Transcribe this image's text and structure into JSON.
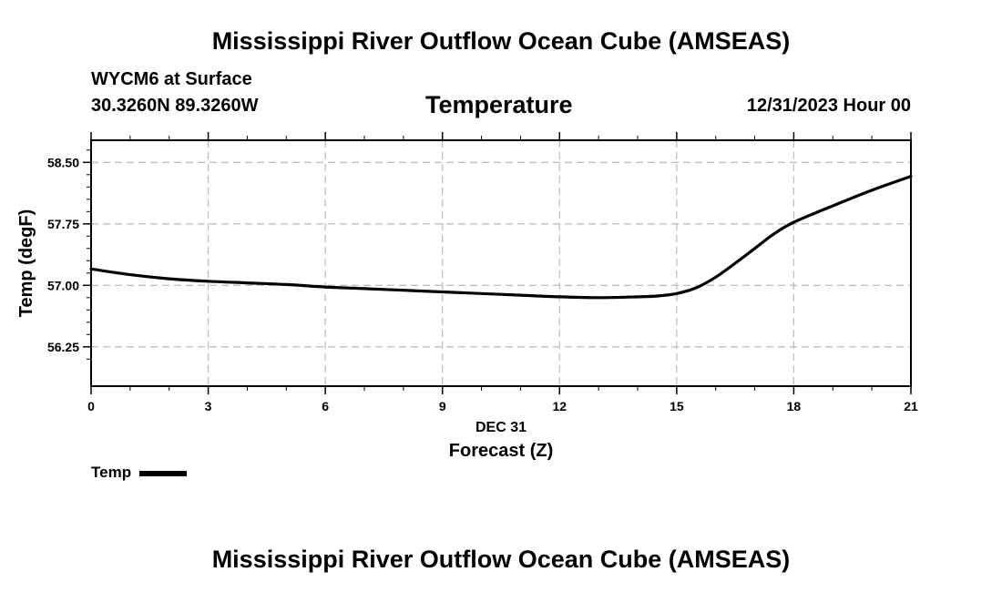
{
  "header": {
    "main_title": "Mississippi River Outflow Ocean Cube (AMSEAS)",
    "station": "WYCM6 at Surface",
    "coords": "30.3260N  89.3260W",
    "date_label": "12/31/2023 Hour 00"
  },
  "footer": {
    "title": "Mississippi River Outflow Ocean Cube (AMSEAS)"
  },
  "legend": {
    "label": "Temp"
  },
  "chart_data": {
    "type": "line",
    "title": "Temperature",
    "xlabel": "Forecast (Z)",
    "xsublabel": "DEC 31",
    "ylabel": "Temp (degF)",
    "xlim": [
      0,
      21
    ],
    "ylim": [
      55.77,
      58.77
    ],
    "xticks": [
      0,
      3,
      6,
      9,
      12,
      15,
      18,
      21
    ],
    "yticks": [
      56.25,
      57.0,
      57.75,
      58.5
    ],
    "ytick_labels": [
      "56.25",
      "57.00",
      "57.75",
      "58.50"
    ],
    "grid": true,
    "legend_position": "bottom-left",
    "series": [
      {
        "name": "Temp",
        "color": "#000000",
        "x": [
          0,
          1,
          2,
          3,
          4,
          5,
          6,
          7,
          8,
          9,
          10,
          11,
          12,
          13,
          14,
          14.5,
          15,
          15.5,
          16,
          16.5,
          17,
          17.5,
          18,
          19,
          20,
          21
        ],
        "y": [
          57.2,
          57.13,
          57.08,
          57.05,
          57.03,
          57.01,
          56.98,
          56.96,
          56.94,
          56.92,
          56.9,
          56.88,
          56.86,
          56.85,
          56.86,
          56.87,
          56.9,
          56.97,
          57.1,
          57.27,
          57.45,
          57.63,
          57.77,
          57.97,
          58.16,
          58.33
        ]
      }
    ]
  }
}
